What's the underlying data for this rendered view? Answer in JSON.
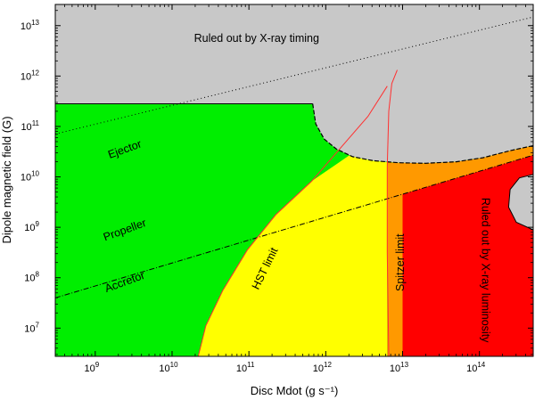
{
  "chart_data": {
    "type": "area",
    "xlabel": "Disc Mdot (g s⁻¹)",
    "ylabel": "Dipole magnetic field (G)",
    "xscale": "log",
    "yscale": "log",
    "xlim_log10": [
      8.48,
      14.7
    ],
    "ylim_log10": [
      6.44,
      13.42
    ],
    "x_ticks": [
      {
        "exp": 9,
        "label": "10"
      },
      {
        "exp": 10,
        "label": "10"
      },
      {
        "exp": 11,
        "label": "10"
      },
      {
        "exp": 12,
        "label": "10"
      },
      {
        "exp": 13,
        "label": "10"
      },
      {
        "exp": 14,
        "label": "10"
      }
    ],
    "y_ticks": [
      {
        "exp": 7,
        "label": "10"
      },
      {
        "exp": 8,
        "label": "10"
      },
      {
        "exp": 9,
        "label": "10"
      },
      {
        "exp": 10,
        "label": "10"
      },
      {
        "exp": 11,
        "label": "10"
      },
      {
        "exp": 12,
        "label": "10"
      },
      {
        "exp": 13,
        "label": "10"
      }
    ],
    "colors": {
      "excluded": "#c8c8c8",
      "allowed_green": "#00ee00",
      "allowed_yellow": "#ffff00",
      "allowed_orange": "#ff9900",
      "excluded_red": "#ff0000",
      "constraint_line": "#ff3030"
    },
    "regions": [
      {
        "name": "xray_timing",
        "label": "Ruled out by X-ray timing",
        "color_key": "excluded"
      },
      {
        "name": "green",
        "color_key": "allowed_green"
      },
      {
        "name": "yellow",
        "color_key": "allowed_yellow"
      },
      {
        "name": "orange",
        "color_key": "allowed_orange"
      },
      {
        "name": "xray_luminosity",
        "label": "Ruled out by X-ray luminosity",
        "color_key": "excluded_red"
      }
    ],
    "boundary_lines": [
      {
        "name": "ejector_propeller",
        "style": "dotted",
        "points": [
          [
            8.48,
            10.85
          ],
          [
            14.7,
            13.17
          ]
        ]
      },
      {
        "name": "propeller_accretor",
        "style": "dash-dot",
        "points": [
          [
            8.48,
            7.6
          ],
          [
            14.7,
            10.43
          ]
        ]
      }
    ],
    "constraints": [
      {
        "name": "hst_limit",
        "label": "HST limit",
        "points": [
          [
            10.34,
            6.44
          ],
          [
            10.44,
            7.05
          ],
          [
            10.66,
            7.75
          ],
          [
            10.98,
            8.55
          ],
          [
            11.35,
            9.25
          ],
          [
            11.82,
            9.92
          ],
          [
            12.55,
            11.2
          ],
          [
            12.8,
            11.8
          ]
        ]
      },
      {
        "name": "spitzer_limit",
        "label": "Spitzer limit",
        "points": [
          [
            12.82,
            6.44
          ],
          [
            12.8,
            8.5
          ],
          [
            12.8,
            10.2
          ],
          [
            12.82,
            11.3
          ],
          [
            12.86,
            11.85
          ],
          [
            12.93,
            12.12
          ]
        ]
      }
    ],
    "annotations": [
      {
        "text": "Ejector",
        "x": 9.4,
        "y": 10.48,
        "angle": -20
      },
      {
        "text": "Propeller",
        "x": 9.4,
        "y": 8.88,
        "angle": -20
      },
      {
        "text": "Accretor",
        "x": 9.4,
        "y": 7.85,
        "angle": -20
      },
      {
        "text": "Ruled out by X-ray timing",
        "x": 11.1,
        "y": 12.68,
        "angle": 0
      },
      {
        "text": "HST limit",
        "x": 11.25,
        "y": 8.15,
        "angle": -64
      },
      {
        "text": "Spitzer limit",
        "x": 13.02,
        "y": 8.3,
        "angle": -90
      },
      {
        "text": "Ruled out by X-ray luminosity",
        "x": 14.03,
        "y": 8.15,
        "angle": 90
      }
    ]
  }
}
